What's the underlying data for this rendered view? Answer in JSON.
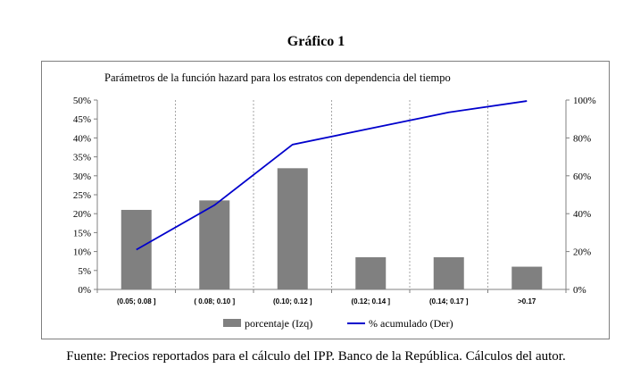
{
  "figure_heading": "Gráfico 1",
  "source_note": "Fuente: Precios reportados para el cálculo del IPP. Banco de la República. Cálculos del autor.",
  "chart_data": {
    "type": "bar",
    "title": "Parámetros de la  función hazard  para los estratos con dependencia del tiempo",
    "categories": [
      "(0.05; 0.08 ]",
      "( 0.08; 0.10 ]",
      "(0.10; 0.12 ]",
      "(0.12; 0.14 ]",
      "(0.14; 0.17 ]",
      ">0.17"
    ],
    "series": [
      {
        "name": "porcentaje (Izq)",
        "type": "bar",
        "axis": "left",
        "color": "#808080",
        "values": [
          21,
          23.5,
          32,
          8.5,
          8.5,
          6
        ]
      },
      {
        "name": "% acumulado (Der)",
        "type": "line",
        "axis": "right",
        "color": "#0000cc",
        "values": [
          21,
          44.5,
          76.5,
          85,
          93.5,
          99.5
        ]
      }
    ],
    "y_left": {
      "min": 0,
      "max": 50,
      "step": 5,
      "tick_labels": [
        "0%",
        "5%",
        "10%",
        "15%",
        "20%",
        "25%",
        "30%",
        "35%",
        "40%",
        "45%",
        "50%"
      ]
    },
    "y_right": {
      "min": 0,
      "max": 100,
      "step": 20,
      "tick_labels": [
        "0%",
        "20%",
        "40%",
        "60%",
        "80%",
        "100%"
      ]
    },
    "grid": "vertical dotted",
    "legend_position": "bottom"
  }
}
